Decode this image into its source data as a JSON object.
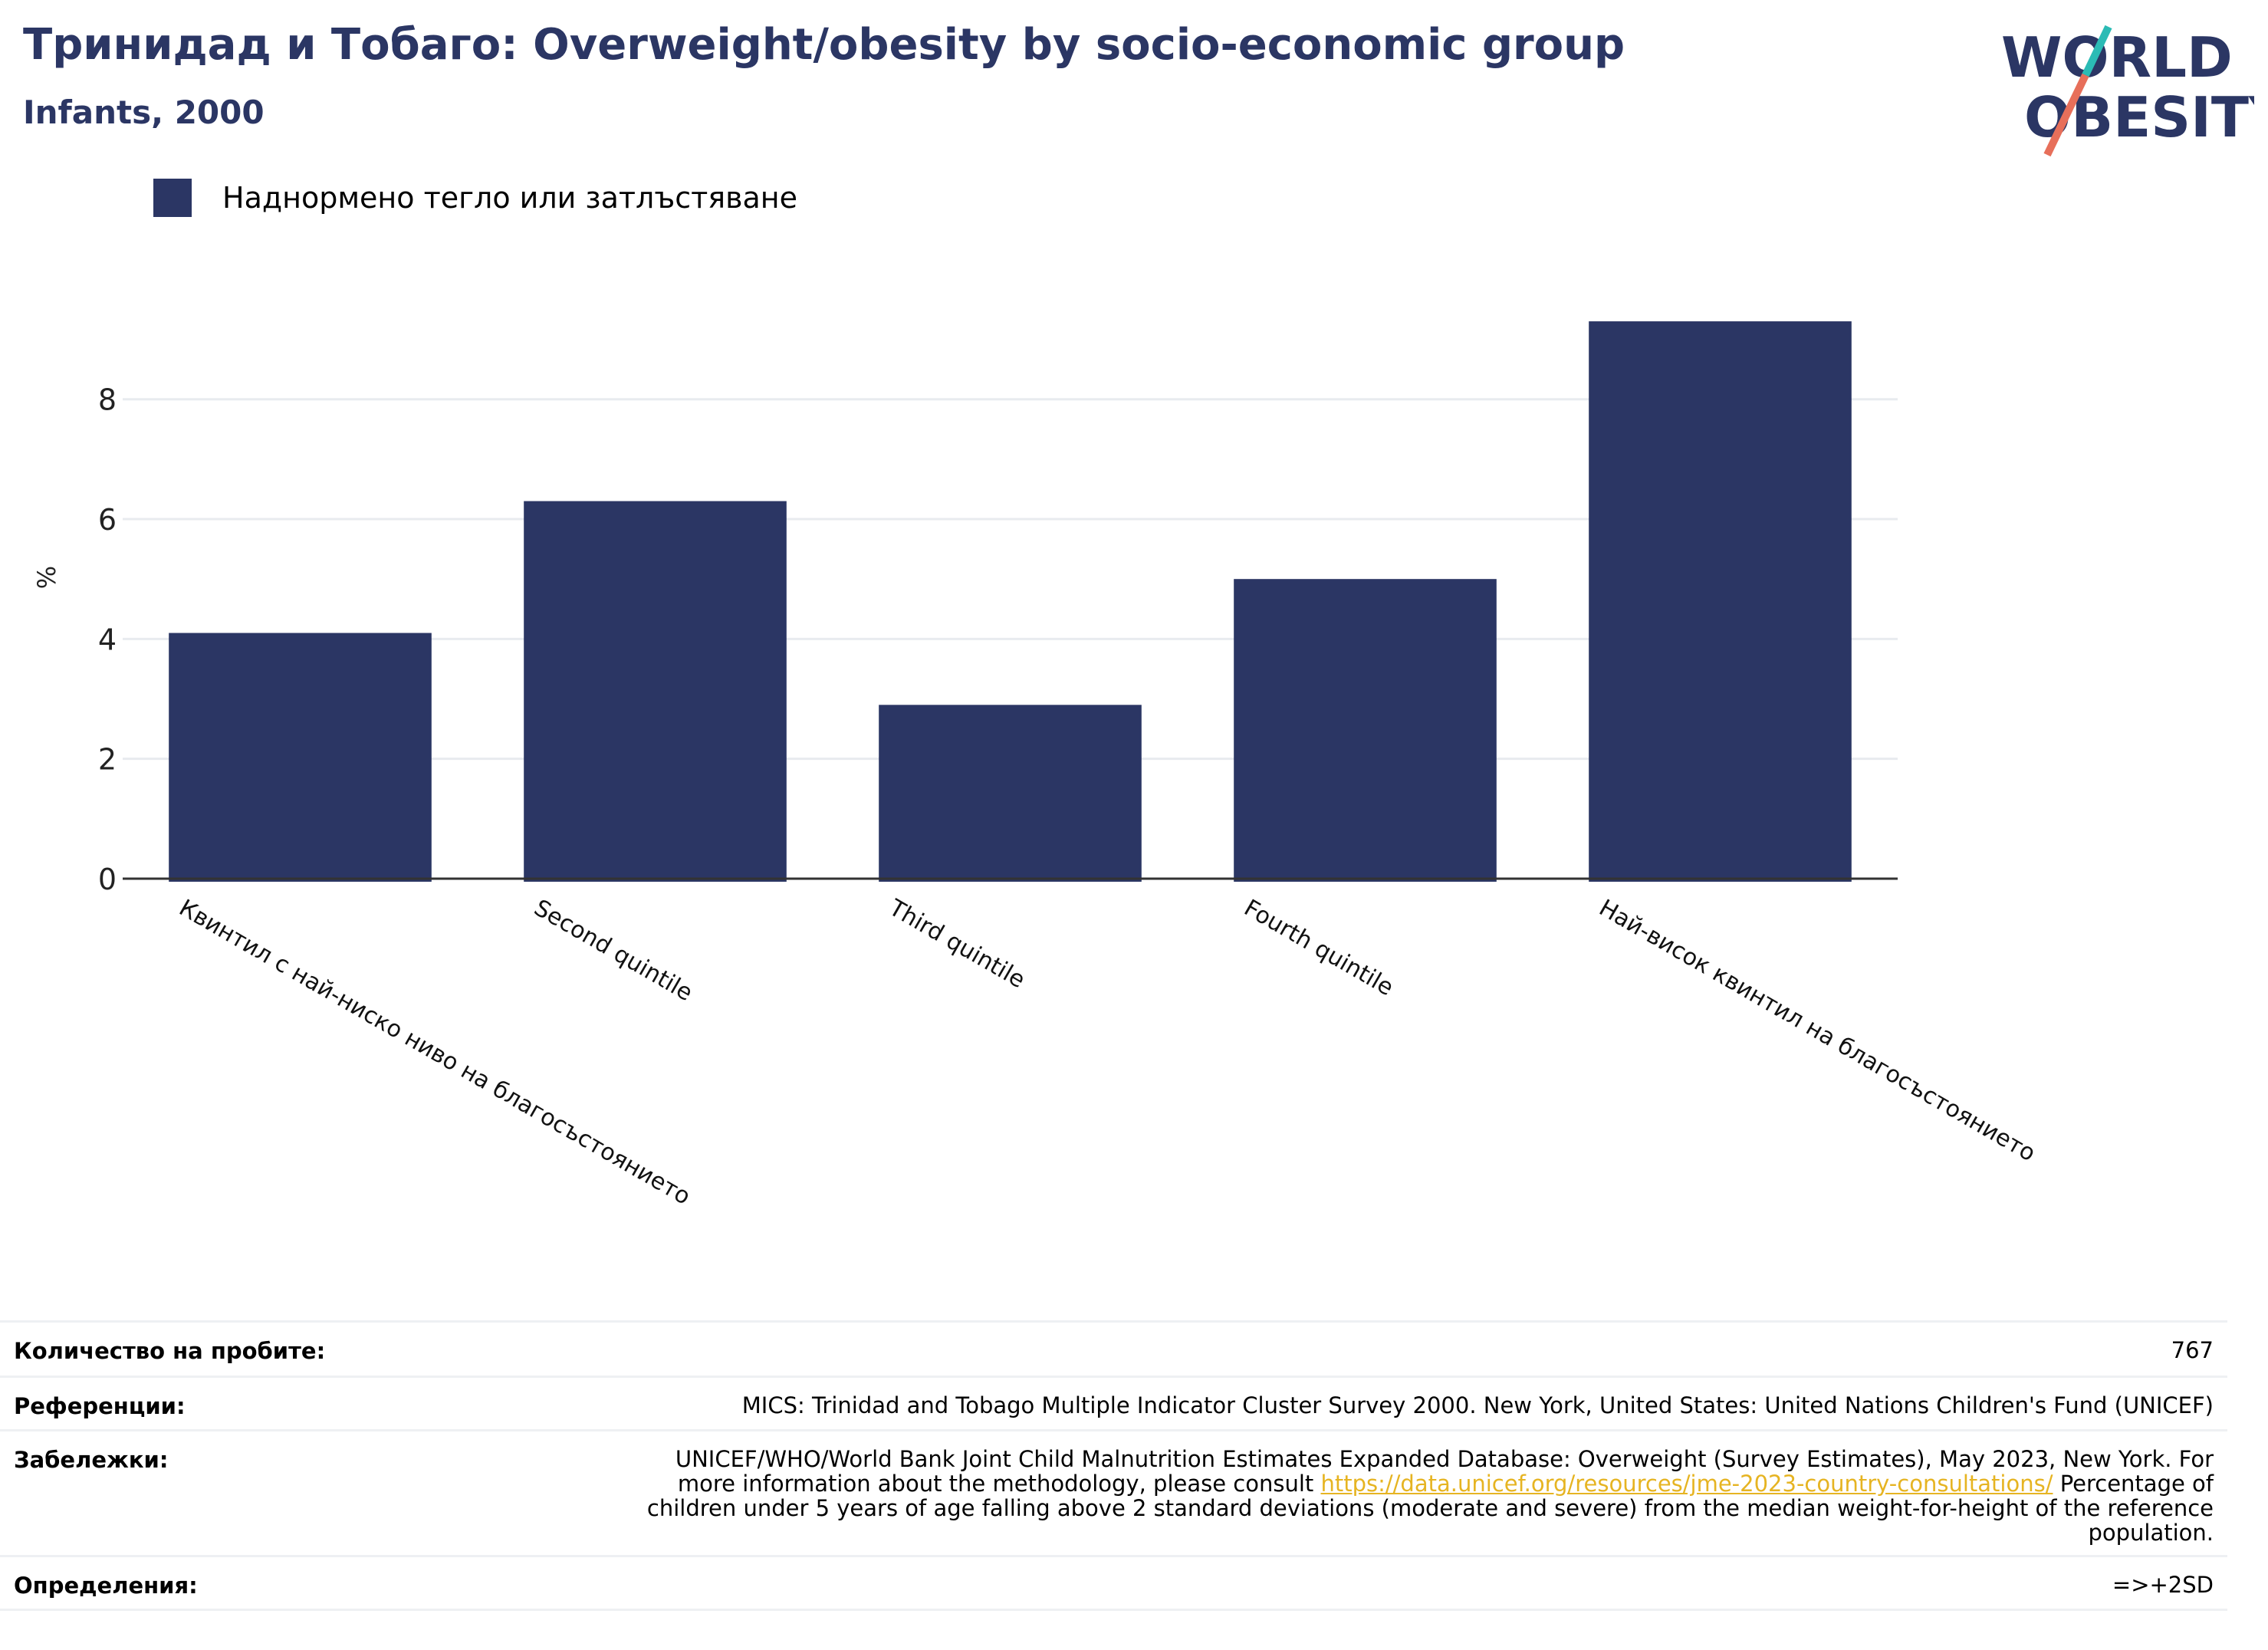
{
  "header": {
    "title": "Тринидад и Тобаго: Overweight/obesity by socio-economic group",
    "subtitle": "Infants, 2000"
  },
  "logo": {
    "line1": "WORLD",
    "line2": "OBESITY",
    "icon": "world-obesity-logo"
  },
  "colors": {
    "bar": "#2b3664",
    "title": "#2b3664",
    "grid": "#e8ebef",
    "axis": "#333333",
    "link": "#e6b422"
  },
  "chart_data": {
    "type": "bar",
    "title": "Тринидад и Тобаго: Overweight/obesity by socio-economic group",
    "subtitle": "Infants, 2000",
    "xlabel": "",
    "ylabel": "%",
    "ylim": [
      0,
      9.8
    ],
    "yticks": [
      0,
      2,
      4,
      6,
      8
    ],
    "grid": true,
    "legend_position": "top-left",
    "categories": [
      "Квинтил с най-ниско ниво на благосъстоянието",
      "Second quintile",
      "Third quintile",
      "Fourth quintile",
      "Най-висок квинтил на благосъстоянието"
    ],
    "series": [
      {
        "name": "Наднормено тегло или затлъстяване",
        "values": [
          4.1,
          6.3,
          2.9,
          5.0,
          9.3
        ]
      }
    ]
  },
  "footer": {
    "sample_label": "Количество на пробите:",
    "sample_value": "767",
    "references_label": "Референции:",
    "references_value": "MICS: Trinidad and Tobago Multiple Indicator Cluster Survey 2000. New York, United States: United Nations Children's Fund (UNICEF)",
    "notes_label": "Забележки:",
    "notes_line1": "UNICEF/WHO/World Bank Joint Child Malnutrition Estimates Expanded Database: Overweight (Survey Estimates), May 2023, New York. For",
    "notes_line2_before": "more information about the methodology, please consult",
    "notes_link": "https://data.unicef.org/resources/jme-2023-country-consultations/",
    "notes_line2_after": "Percentage of",
    "notes_line3": "children under 5 years of age falling above 2 standard deviations (moderate and severe) from the median weight-for-height of the reference",
    "notes_line4": "population.",
    "definitions_label": "Определения:",
    "definitions_value": "=>+2SD"
  }
}
